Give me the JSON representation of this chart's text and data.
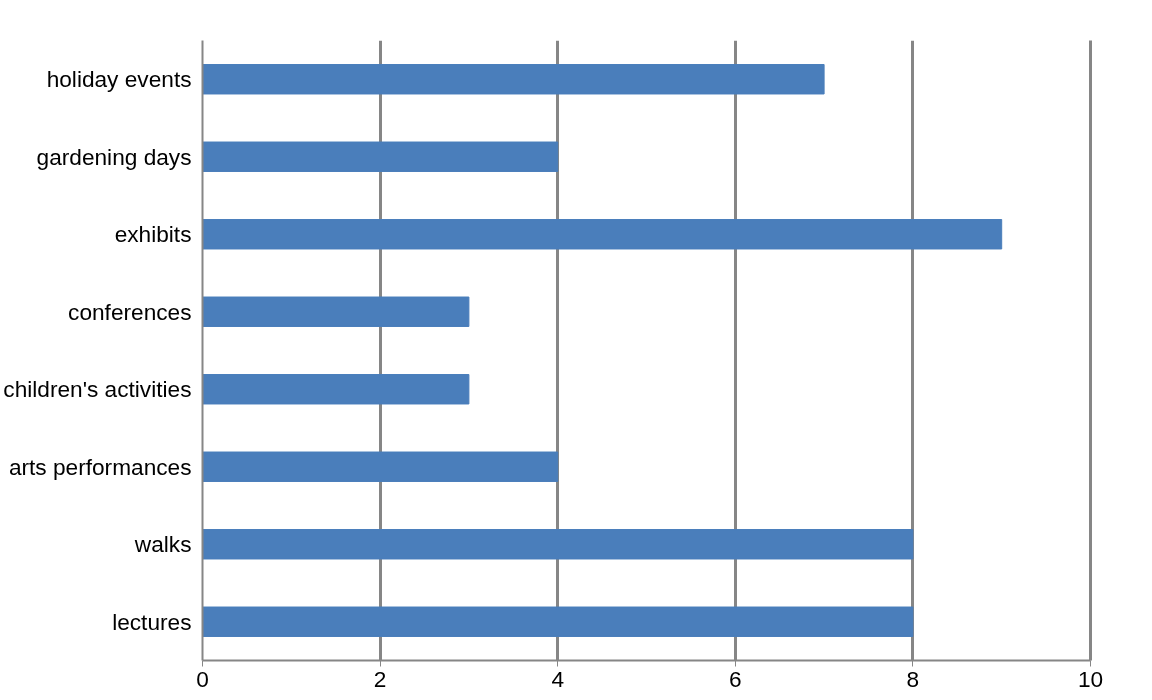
{
  "chart_data": {
    "type": "bar",
    "orientation": "horizontal",
    "categories": [
      "holiday events",
      "gardening days",
      "exhibits",
      "conferences",
      "children's activities",
      "arts performances",
      "walks",
      "lectures"
    ],
    "values": [
      7,
      4,
      9,
      3,
      3,
      4,
      8,
      8
    ],
    "color": "#4a7ebb",
    "xlim": [
      0,
      10
    ],
    "xticks": [
      0,
      2,
      4,
      6,
      8,
      10
    ],
    "grid": "x"
  }
}
